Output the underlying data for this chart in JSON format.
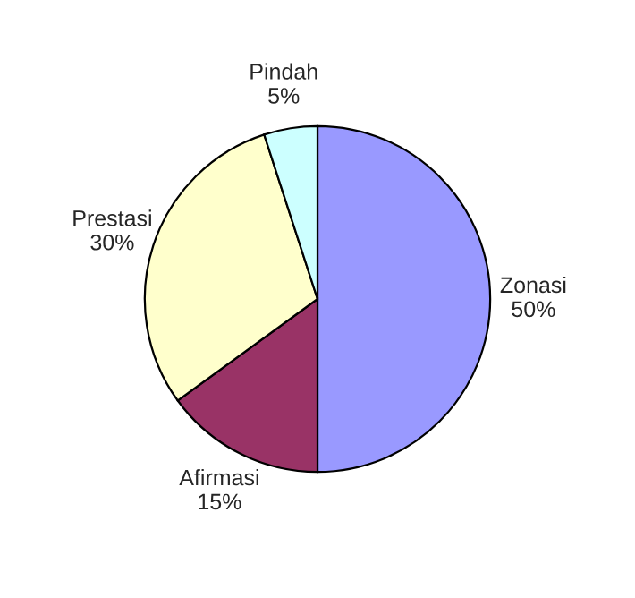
{
  "chart_data": {
    "type": "pie",
    "categories": [
      "Zonasi",
      "Afirmasi",
      "Prestasi",
      "Pindah"
    ],
    "values": [
      50,
      15,
      30,
      5
    ],
    "value_labels": [
      "50%",
      "15%",
      "30%",
      "5%"
    ],
    "colors": [
      "#9999ff",
      "#993366",
      "#ffffcc",
      "#ccffff"
    ],
    "legend": false
  }
}
